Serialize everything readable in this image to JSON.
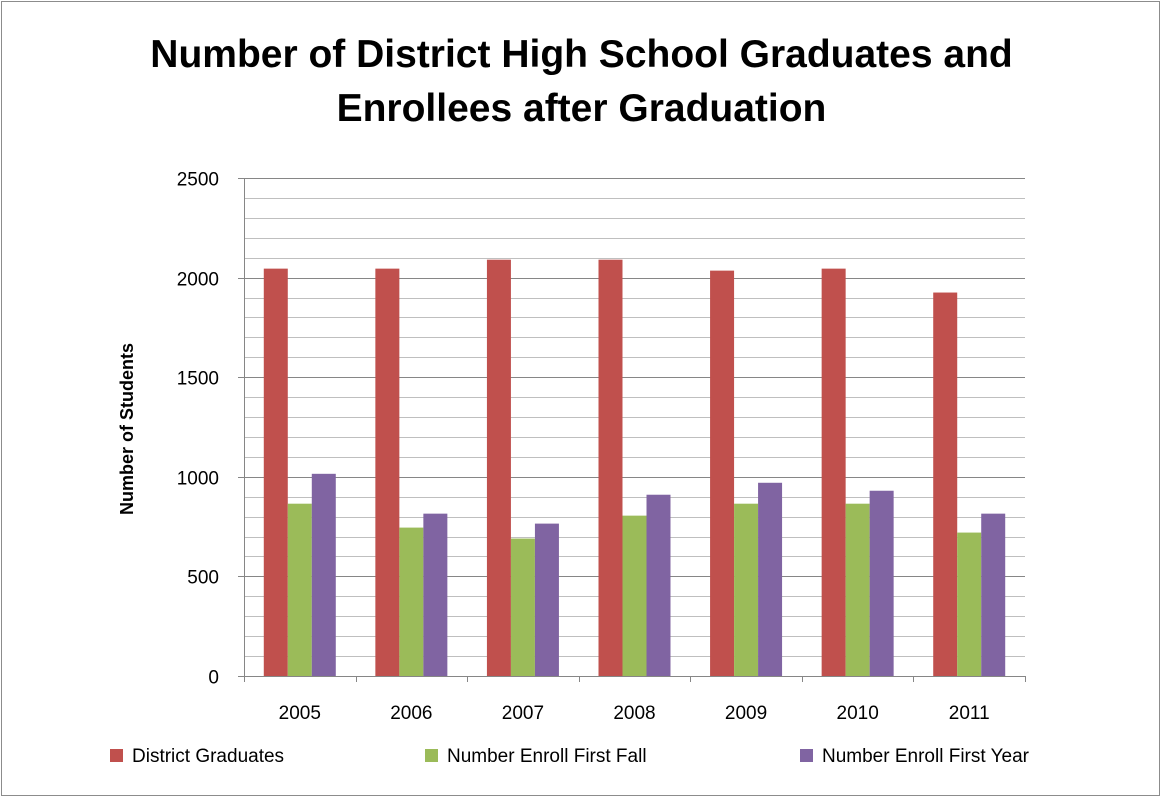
{
  "chart_data": {
    "type": "bar",
    "title_lines": [
      "Number of District High School Graduates and",
      "Enrollees after Graduation"
    ],
    "xlabel": "",
    "ylabel": "Number of Students",
    "categories": [
      "2005",
      "2006",
      "2007",
      "2008",
      "2009",
      "2010",
      "2011"
    ],
    "ylim": [
      0,
      2500
    ],
    "yticks": [
      0,
      500,
      1000,
      1500,
      2000,
      2500
    ],
    "minor_grid_step": 100,
    "grid": true,
    "legend_position": "bottom",
    "series": [
      {
        "name": "District Graduates",
        "color": "#c0504d",
        "values": [
          2045,
          2045,
          2090,
          2090,
          2035,
          2045,
          1925
        ]
      },
      {
        "name": "Number Enroll First Fall",
        "color": "#9bbb59",
        "values": [
          865,
          745,
          690,
          805,
          865,
          865,
          720
        ]
      },
      {
        "name": "Number Enroll First Year",
        "color": "#8064a2",
        "values": [
          1015,
          815,
          765,
          910,
          970,
          930,
          815
        ]
      }
    ]
  }
}
